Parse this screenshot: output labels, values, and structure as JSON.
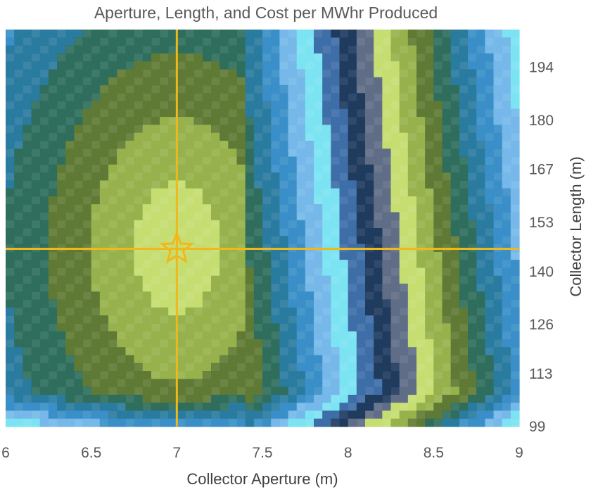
{
  "chart_data": {
    "type": "heatmap",
    "title": "Aperture, Length, and Cost per MWhr Produced",
    "xlabel": "Collector Aperture (m)",
    "ylabel": "Collector Length (m)",
    "x_ticks": [
      "6",
      "6.5",
      "7",
      "7.5",
      "8",
      "8.5",
      "9"
    ],
    "y_ticks": [
      "99",
      "113",
      "126",
      "140",
      "153",
      "167",
      "180",
      "194"
    ],
    "xlim": [
      6,
      9
    ],
    "ylim": [
      99,
      204
    ],
    "grid": false,
    "optimum": {
      "aperture": 7.0,
      "length": 146
    },
    "marker": "star",
    "colors": {
      "palette": [
        "#c6dd72",
        "#97b24c",
        "#5f7a34",
        "#2f6e5c",
        "#2a7ba0",
        "#3a8fc8",
        "#75b8e9",
        "#7be3f2",
        "#3e6ea8",
        "#1f3b5e",
        "#5f6d86"
      ],
      "crosshair": "#f0b81a",
      "axis_text": "#595959"
    }
  }
}
